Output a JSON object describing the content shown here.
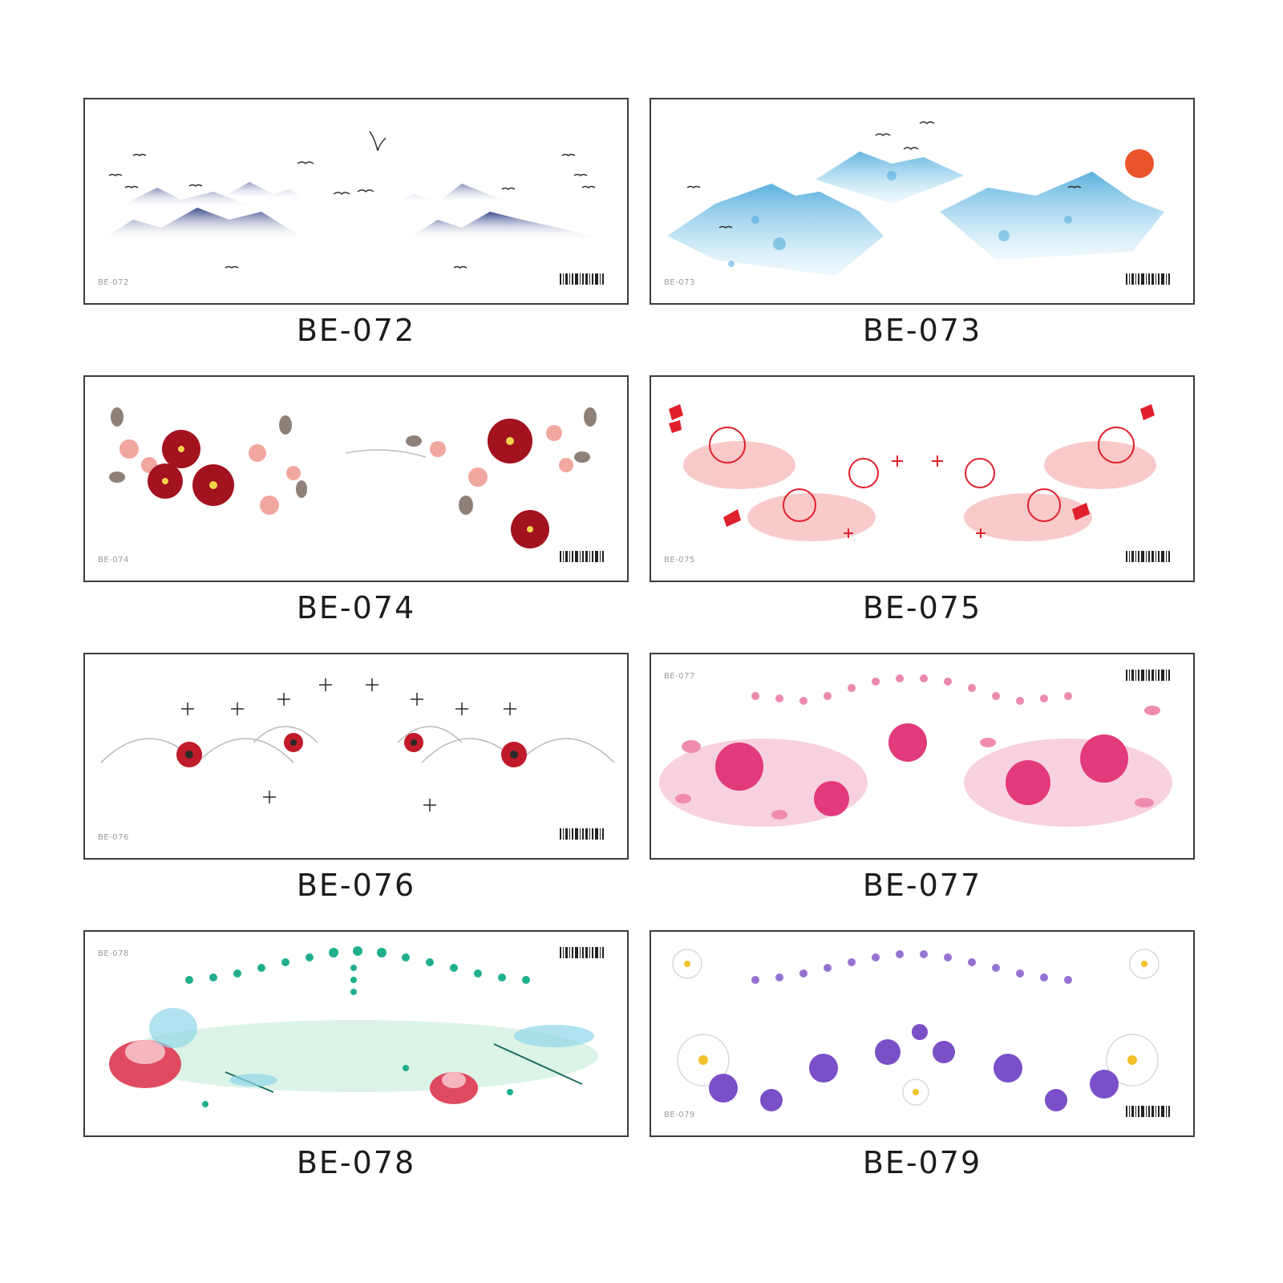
{
  "products": [
    {
      "code": "BE-072",
      "small_code": "BE-072",
      "theme": "ink-mountains-birds",
      "colors": {
        "main": "#3b4a8c",
        "light": "#9aa6cc"
      }
    },
    {
      "code": "BE-073",
      "small_code": "BE-073",
      "theme": "blue-mountains-sun",
      "colors": {
        "main": "#3fa3d8",
        "light": "#a8dcf3",
        "sun": "#e9542b"
      }
    },
    {
      "code": "BE-074",
      "small_code": "BE-074",
      "theme": "red-plum-blossoms",
      "colors": {
        "main": "#a3121f",
        "light": "#f2a6a0",
        "leaf": "#7b6a60"
      }
    },
    {
      "code": "BE-075",
      "small_code": "BE-075",
      "theme": "red-spider-lily-butterflies",
      "colors": {
        "main": "#e0202c",
        "light": "#f7b3b3"
      }
    },
    {
      "code": "BE-076",
      "small_code": "BE-076",
      "theme": "spider-lily-sparkles",
      "colors": {
        "main": "#c01b2a",
        "light": "#b8b8b8",
        "dark": "#2a2a2a"
      }
    },
    {
      "code": "BE-077",
      "small_code": "BE-077",
      "theme": "pink-peach-blossoms",
      "colors": {
        "main": "#e23a7a",
        "light": "#f6c6d8"
      }
    },
    {
      "code": "BE-078",
      "small_code": "BE-078",
      "theme": "lotus-dragonfly-teal-dots",
      "colors": {
        "main": "#1fae8e",
        "light": "#cdeedd",
        "flower": "#e04a60"
      }
    },
    {
      "code": "BE-079",
      "small_code": "BE-079",
      "theme": "purple-white-cosmos",
      "colors": {
        "main": "#7a4fc7",
        "light": "#d6c8f2",
        "white": "#f4f4f4"
      }
    }
  ]
}
